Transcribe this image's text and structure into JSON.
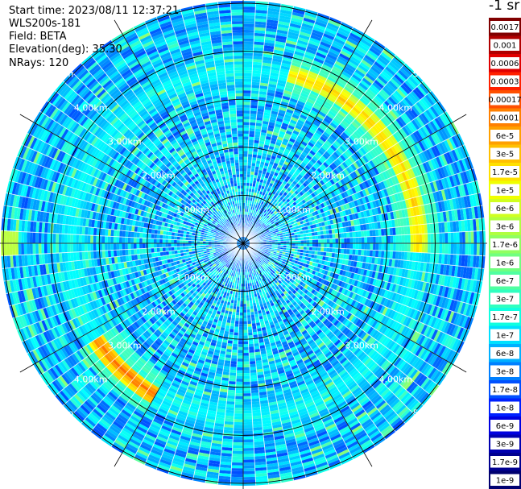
{
  "header": {
    "start_time": "Start time: 2023/08/11 12:37:21",
    "instrument": "WLS200s-181",
    "field": "Field: BETA",
    "elevation": "Elevation(deg): 35.30",
    "nrays": "NRays: 120"
  },
  "colorbar": {
    "units": "-1 sr",
    "labels": [
      "0.0017",
      "0.001",
      "0.0006",
      "0.0003",
      "0.00017",
      "0.0001",
      "6e-5",
      "3e-5",
      "1.7e-5",
      "1e-5",
      "6e-6",
      "3e-6",
      "1.7e-6",
      "1e-6",
      "6e-7",
      "3e-7",
      "1.7e-7",
      "1e-7",
      "6e-8",
      "3e-8",
      "1.7e-8",
      "1e-8",
      "6e-9",
      "3e-9",
      "1.7e-9",
      "1e-9"
    ],
    "colors": [
      "#800000",
      "#b00000",
      "#e00000",
      "#ff2000",
      "#ff5000",
      "#ff8000",
      "#ffa000",
      "#ffc000",
      "#ffe000",
      "#f0ff00",
      "#d0ff20",
      "#b0ff40",
      "#90ff60",
      "#70ff80",
      "#50ffa0",
      "#30ffc0",
      "#10ffe0",
      "#00e0ff",
      "#00b0ff",
      "#0080ff",
      "#0050ff",
      "#0020ff",
      "#0000e0",
      "#0000b0",
      "#000090",
      "#000070"
    ]
  },
  "chart_data": {
    "type": "heatmap",
    "projection": "polar",
    "field": "BETA",
    "nrays": 120,
    "elevation_deg": 35.3,
    "range_rings_km": [
      1,
      2,
      3,
      4,
      5
    ],
    "ring_labels": [
      "1.00km",
      "2.00km",
      "3.00km",
      "4.00km",
      "5.00km"
    ],
    "max_range_km": 5.05,
    "spokes_deg": [
      0,
      30,
      60,
      90,
      120,
      150,
      180,
      210,
      240,
      270,
      300,
      330
    ],
    "features": [
      {
        "kind": "arc",
        "radius_km": 3.65,
        "from_az_deg": 15,
        "to_az_deg": 92,
        "level": "1e-5"
      },
      {
        "kind": "arc",
        "radius_km": 3.65,
        "from_az_deg": 210,
        "to_az_deg": 238,
        "level": "3e-5"
      },
      {
        "kind": "spot",
        "radius_km": 5.0,
        "az_deg": 270,
        "level": "3e-6"
      },
      {
        "kind": "ring",
        "radius_km": 3.6,
        "level": "3e-7"
      }
    ]
  }
}
